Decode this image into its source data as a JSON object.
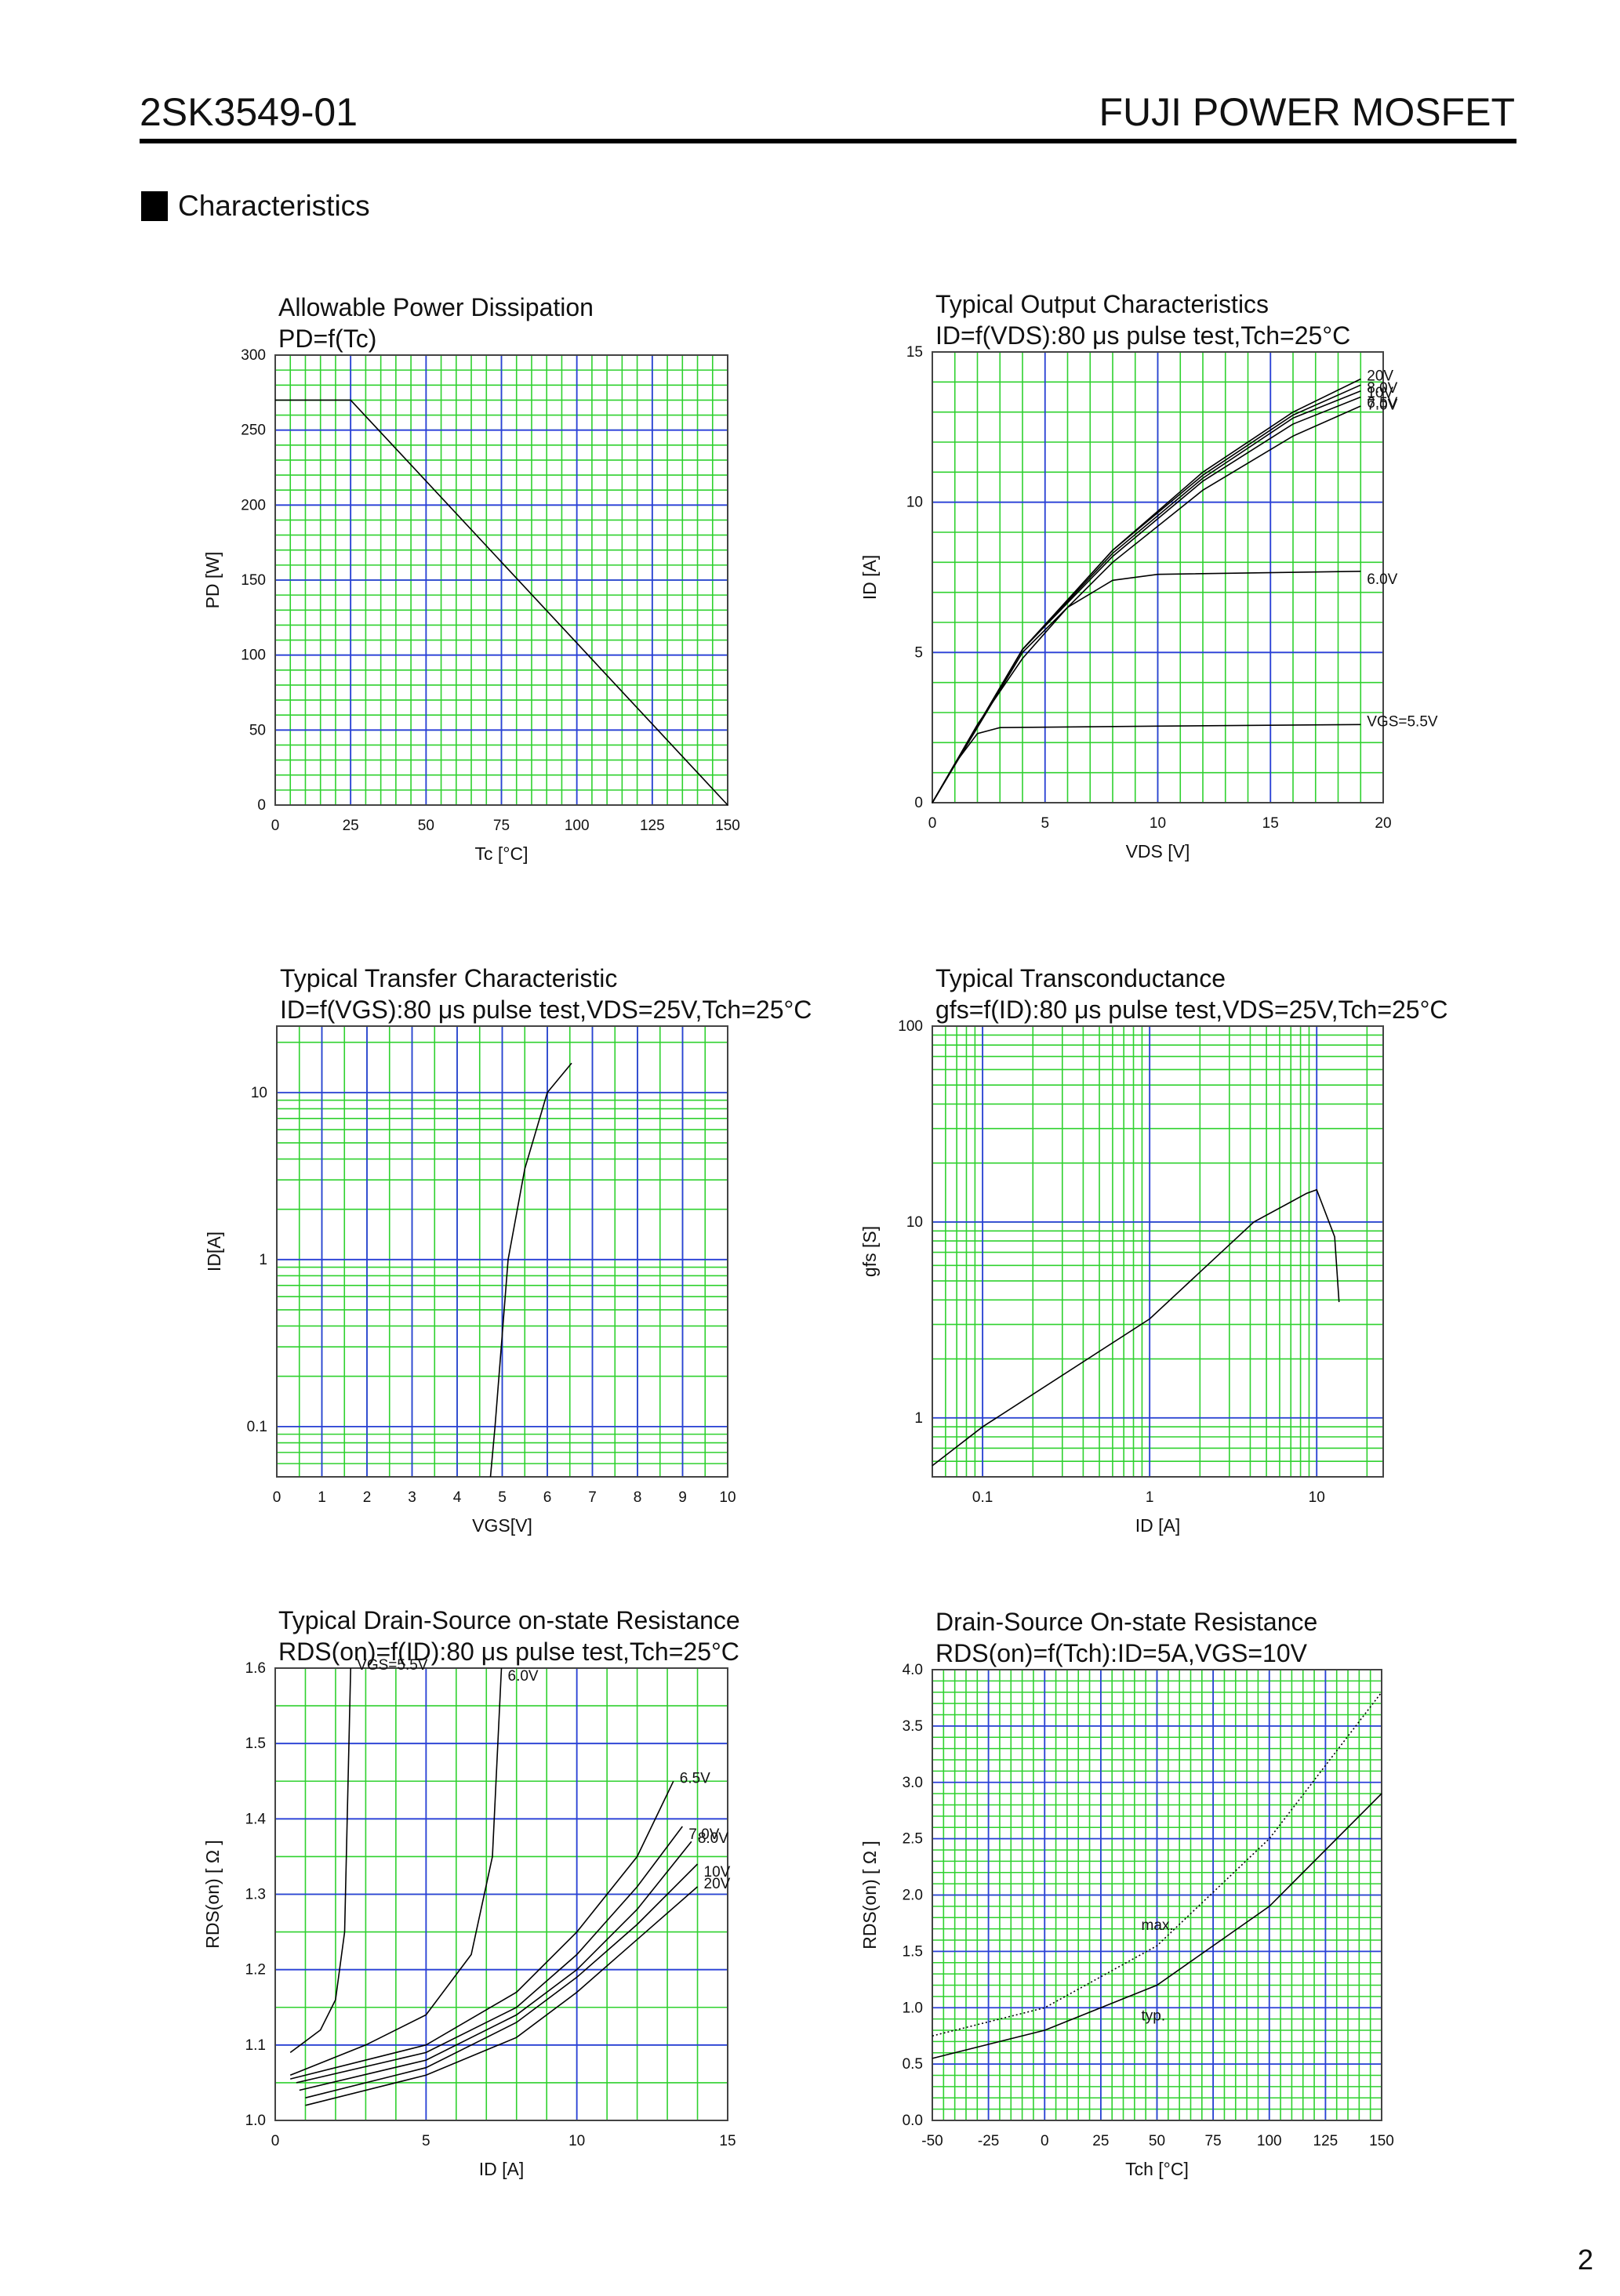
{
  "header": {
    "part": "2SK3549-01",
    "brand": "FUJI POWER MOSFET"
  },
  "section": "Characteristics",
  "page_number": "2",
  "chart_data": [
    {
      "type": "line",
      "title": "Allowable Power Dissipation",
      "subtitle": "PD=f(Tc)",
      "xlabel": "Tc [°C]",
      "ylabel": "PD [W]",
      "xlim": [
        0,
        150
      ],
      "xticks": [
        0,
        25,
        50,
        75,
        100,
        125,
        150
      ],
      "ylim": [
        0,
        300
      ],
      "yticks": [
        0,
        50,
        100,
        150,
        200,
        250,
        300
      ],
      "grid": true,
      "series": [
        {
          "color": "#000000",
          "x": [
            0,
            25,
            150
          ],
          "values": [
            270,
            270,
            0
          ]
        }
      ]
    },
    {
      "type": "line",
      "title": "Typical Output Characteristics",
      "subtitle": "ID=f(VDS):80 μs pulse test,Tch=25°C",
      "xlabel": "VDS [V]",
      "ylabel": "ID [A]",
      "xlim": [
        0,
        20
      ],
      "xticks": [
        0,
        5,
        10,
        15,
        20
      ],
      "ylim": [
        0,
        15
      ],
      "yticks": [
        0,
        5,
        10,
        15
      ],
      "grid": true,
      "series": [
        {
          "name": "VGS=5.5V",
          "color": "#000000",
          "x": [
            0,
            1,
            2,
            3,
            10,
            19
          ],
          "values": [
            0,
            1.3,
            2.3,
            2.5,
            2.55,
            2.6
          ]
        },
        {
          "name": "6.0V",
          "color": "#000000",
          "x": [
            0,
            2,
            4,
            6,
            8,
            10,
            19
          ],
          "values": [
            0,
            2.6,
            4.8,
            6.5,
            7.4,
            7.6,
            7.7
          ]
        },
        {
          "name": "6.5V",
          "color": "#000000",
          "x": [
            0,
            4,
            8,
            12,
            16,
            19
          ],
          "values": [
            0,
            5,
            8,
            10.4,
            12.2,
            13.2
          ]
        },
        {
          "name": "7.0V",
          "color": "#000000",
          "x": [
            0,
            4,
            8,
            12,
            16,
            19
          ],
          "values": [
            0,
            5.1,
            8.2,
            10.7,
            12.6,
            13.5
          ]
        },
        {
          "name": "8.0V",
          "color": "#000000",
          "x": [
            0,
            4,
            8,
            12,
            16,
            19
          ],
          "values": [
            0,
            5.1,
            8.3,
            10.8,
            12.8,
            13.7
          ]
        },
        {
          "name": "10V",
          "color": "#000000",
          "x": [
            0,
            4,
            8,
            12,
            16,
            19
          ],
          "values": [
            0,
            5.1,
            8.4,
            10.9,
            12.9,
            13.9
          ]
        },
        {
          "name": "20V",
          "color": "#000000",
          "x": [
            0,
            4,
            8,
            12,
            16,
            19
          ],
          "values": [
            0,
            5.1,
            8.4,
            11,
            13,
            14.1
          ]
        }
      ]
    },
    {
      "type": "line",
      "title": "Typical Transfer Characteristic",
      "subtitle": "ID=f(VGS):80 μs pulse test,VDS=25V,Tch=25°C",
      "xlabel": "VGS[V]",
      "ylabel": "ID[A]",
      "xlim": [
        0,
        10
      ],
      "xticks": [
        0,
        1,
        2,
        3,
        4,
        5,
        6,
        7,
        8,
        9,
        10
      ],
      "ylim": [
        0.05,
        25
      ],
      "yticks": [
        0.1,
        1,
        10
      ],
      "ylog": true,
      "grid": true,
      "series": [
        {
          "color": "#000000",
          "x": [
            4.74,
            4.84,
            5.13,
            5.5,
            6.0,
            6.54
          ],
          "values": [
            0.05,
            0.1,
            1,
            3.5,
            10,
            15
          ]
        }
      ]
    },
    {
      "type": "line",
      "title": "Typical Transconductance",
      "subtitle": "gfs=f(ID):80 μs pulse test,VDS=25V,Tch=25°C",
      "xlabel": "ID [A]",
      "ylabel": "gfs [S]",
      "xlim": [
        0.05,
        25
      ],
      "xticks": [
        0.1,
        1,
        10
      ],
      "xlog": true,
      "ylim": [
        0.5,
        100
      ],
      "yticks": [
        1,
        10,
        100
      ],
      "ylog": true,
      "grid": true,
      "series": [
        {
          "color": "#000000",
          "x": [
            0.05,
            0.1,
            1,
            4.2,
            8.7,
            10,
            12.8,
            13.6
          ],
          "values": [
            0.57,
            0.9,
            3.2,
            10,
            14,
            14.6,
            8.4,
            3.9
          ]
        }
      ]
    },
    {
      "type": "line",
      "title": "Typical Drain-Source on-state Resistance",
      "subtitle": "RDS(on)=f(ID):80  μs pulse test,Tch=25°C",
      "xlabel": "ID [A]",
      "ylabel": "RDS(on) [ Ω ]",
      "xlim": [
        0,
        15
      ],
      "xticks": [
        0,
        5,
        10,
        15
      ],
      "ylim": [
        1,
        1.6
      ],
      "yticks": [
        {
          "value": 1,
          "label": "1.0"
        },
        1.1,
        1.2,
        1.3,
        1.4,
        1.5,
        1.6
      ],
      "grid": true,
      "series": [
        {
          "name": "VGS=5.5V",
          "color": "#000000",
          "x": [
            0.5,
            1.5,
            2,
            2.3,
            2.5
          ],
          "values": [
            1.09,
            1.12,
            1.16,
            1.25,
            1.6
          ]
        },
        {
          "name": "6.0V",
          "color": "#000000",
          "x": [
            0.5,
            3,
            5,
            6.5,
            7.2,
            7.5
          ],
          "values": [
            1.06,
            1.1,
            1.14,
            1.22,
            1.35,
            1.6
          ]
        },
        {
          "name": "6.5V",
          "color": "#000000",
          "x": [
            0.5,
            5,
            8,
            10,
            12,
            13.2
          ],
          "values": [
            1.055,
            1.1,
            1.17,
            1.25,
            1.35,
            1.45
          ]
        },
        {
          "name": "7.0V",
          "color": "#000000",
          "x": [
            0.7,
            5,
            8,
            10,
            12,
            13.5
          ],
          "values": [
            1.05,
            1.09,
            1.15,
            1.22,
            1.31,
            1.39
          ]
        },
        {
          "name": "8.0V",
          "color": "#000000",
          "x": [
            0.8,
            5,
            8,
            10,
            12,
            13.8
          ],
          "values": [
            1.04,
            1.08,
            1.14,
            1.2,
            1.28,
            1.37
          ]
        },
        {
          "name": "10V",
          "color": "#000000",
          "x": [
            1,
            5,
            8,
            10,
            12,
            14
          ],
          "values": [
            1.03,
            1.07,
            1.13,
            1.19,
            1.26,
            1.34
          ]
        },
        {
          "name": "20V",
          "color": "#000000",
          "x": [
            1,
            5,
            8,
            10,
            12,
            14
          ],
          "values": [
            1.02,
            1.06,
            1.11,
            1.17,
            1.24,
            1.31
          ]
        }
      ]
    },
    {
      "type": "line",
      "title": "Drain-Source On-state Resistance",
      "subtitle": "RDS(on)=f(Tch):ID=5A,VGS=10V",
      "xlabel": "Tch [°C]",
      "ylabel": "RDS(on) [ Ω ]",
      "xlim": [
        -50,
        150
      ],
      "xticks": [
        -50,
        -25,
        0,
        25,
        50,
        75,
        100,
        125,
        150
      ],
      "ylim": [
        0,
        4
      ],
      "yticks": [
        {
          "value": 0,
          "label": "0.0"
        },
        0.5,
        {
          "value": 1,
          "label": "1.0"
        },
        1.5,
        {
          "value": 2,
          "label": "2.0"
        },
        2.5,
        {
          "value": 3,
          "label": "3.0"
        },
        3.5,
        {
          "value": 4,
          "label": "4.0"
        }
      ],
      "grid": true,
      "series": [
        {
          "name": "max.",
          "color": "#000000",
          "style": "dotted",
          "x": [
            -50,
            0,
            50,
            100,
            150
          ],
          "values": [
            0.75,
            1.0,
            1.55,
            2.5,
            3.8
          ]
        },
        {
          "name": "typ.",
          "color": "#000000",
          "x": [
            -50,
            0,
            50,
            100,
            150
          ],
          "values": [
            0.55,
            0.8,
            1.2,
            1.9,
            2.9
          ]
        }
      ]
    }
  ]
}
